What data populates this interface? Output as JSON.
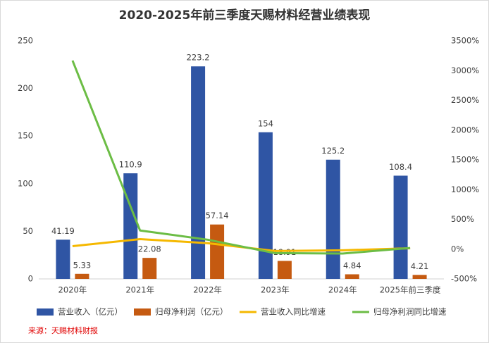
{
  "chart_data": {
    "type": "bar",
    "title": "2020-2025年前三季度天赐材料经营业绩表现",
    "categories": [
      "2020年",
      "2021年",
      "2022年",
      "2023年",
      "2024年",
      "2025年前三季度"
    ],
    "series": [
      {
        "name": "营业收入（亿元）",
        "type": "bar",
        "color": "#2f55a4",
        "values": [
          41.19,
          110.9,
          223.2,
          154,
          125.2,
          108.4
        ]
      },
      {
        "name": "归母净利润（亿元）",
        "type": "bar",
        "color": "#c55a11",
        "values": [
          5.33,
          22.08,
          57.14,
          18.91,
          4.84,
          4.21
        ]
      },
      {
        "name": "营业收入同比增速",
        "type": "line",
        "axis": "y2",
        "color": "#f5b800",
        "values": [
          50,
          169,
          101,
          -31,
          -19,
          15
        ]
      },
      {
        "name": "归母净利润同比增速",
        "type": "line",
        "axis": "y2",
        "color": "#6cbd45",
        "values": [
          3170,
          314,
          159,
          -67,
          -74,
          20
        ]
      }
    ],
    "ylim": [
      0,
      250
    ],
    "yticks": [
      0,
      50,
      100,
      150,
      200,
      250
    ],
    "y2lim": [
      -500,
      3500
    ],
    "y2ticks": [
      {
        "value": -500,
        "label": "-500%"
      },
      {
        "value": 0,
        "label": "0%"
      },
      {
        "value": 500,
        "label": "500%"
      },
      {
        "value": 1000,
        "label": "1000%"
      },
      {
        "value": 1500,
        "label": "1500%"
      },
      {
        "value": 2000,
        "label": "2000%"
      },
      {
        "value": 2500,
        "label": "2500%"
      },
      {
        "value": 3000,
        "label": "3000%"
      },
      {
        "value": 3500,
        "label": "3500%"
      }
    ],
    "grid": false,
    "legend": "bottom",
    "source": "来源：天赐材料财报"
  }
}
